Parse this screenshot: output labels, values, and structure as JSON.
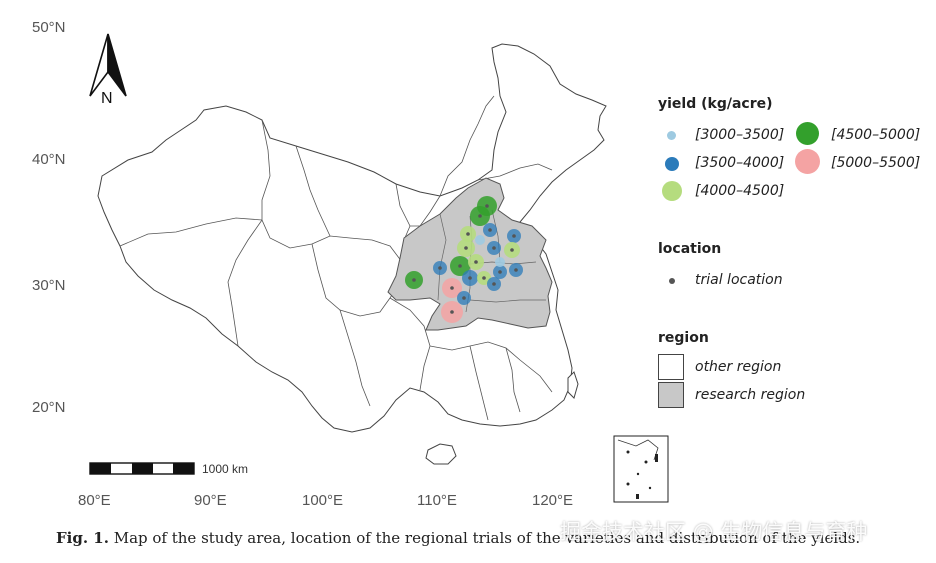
{
  "axes": {
    "lat_labels": [
      "50°N",
      "40°N",
      "30°N",
      "20°N"
    ],
    "lon_labels": [
      "80°E",
      "90°E",
      "100°E",
      "110°E",
      "120°E"
    ]
  },
  "north_arrow": {
    "label": "N"
  },
  "scale_bar": {
    "label": "1000 km"
  },
  "legend": {
    "yield_title": "yield (kg/acre)",
    "yield_classes": [
      {
        "label": "[3000–3500]",
        "color": "#9ecae1"
      },
      {
        "label": "[3500–4000]",
        "color": "#2b7bba"
      },
      {
        "label": "[4000–4500]",
        "color": "#b5dc7e"
      },
      {
        "label": "[4500–5000]",
        "color": "#33a02c"
      },
      {
        "label": "[5000–5500]",
        "color": "#f4a3a3"
      }
    ],
    "location_title": "location",
    "location_item": "trial location",
    "region_title": "region",
    "region_items": [
      {
        "label": "other region",
        "color": "#ffffff"
      },
      {
        "label": "research region",
        "color": "#c8c8c8"
      }
    ]
  },
  "caption": {
    "prefix": "Fig. 1.",
    "text": " Map of the study area, location of the regional trials of the varieties and distribution of the yields."
  },
  "watermark": "掘金技术社区 @ 生物信息与育种"
}
